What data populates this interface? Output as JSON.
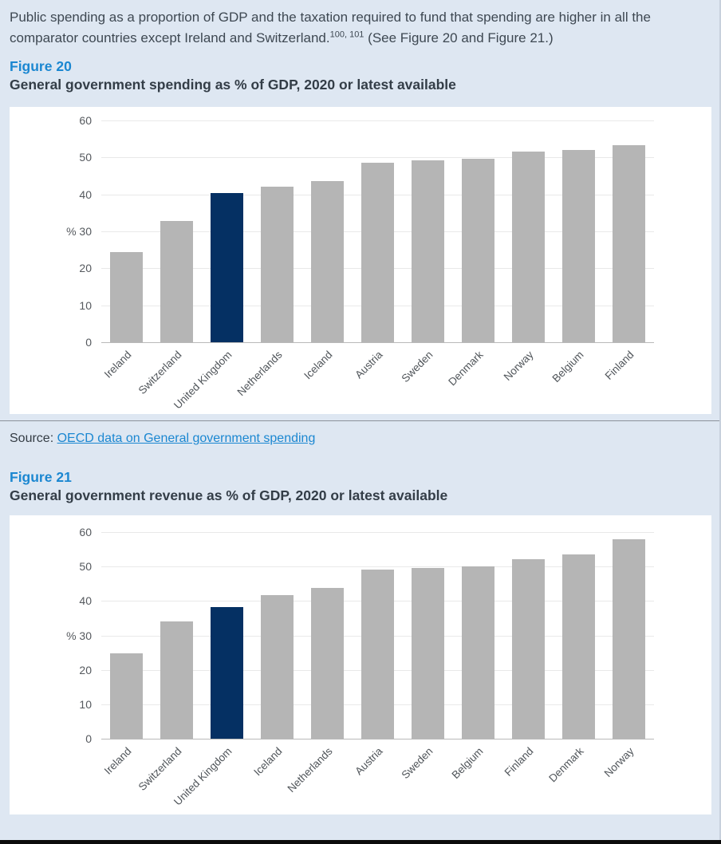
{
  "page": {
    "background": "#dee7f2",
    "intro": {
      "text_before_sup": "Public spending as a proportion of GDP and the taxation required to fund that spending are higher in all the comparator countries except Ireland and Switzerland.",
      "superscript": "100, 101",
      "text_after_sup": " (See Figure 20 and Figure 21.)"
    }
  },
  "figure20": {
    "label": "Figure 20",
    "title": "General government spending as % of GDP, 2020 or latest available"
  },
  "source_line": {
    "prefix": "Source: ",
    "link_text": "OECD data on General government spending"
  },
  "figure21": {
    "label": "Figure 21",
    "title": "General government revenue as % of GDP, 2020 or latest available"
  },
  "colors": {
    "accent_blue": "#1b87d1",
    "heading_text": "#333d47",
    "body_text": "#3e4852",
    "bar_gray": "#b5b5b5",
    "bar_highlight_navy": "#053063"
  },
  "chart_data": [
    {
      "id": "spending",
      "type": "bar",
      "title": "General government spending as % of GDP, 2020 or latest available",
      "categories": [
        "Ireland",
        "Switzerland",
        "United Kingdom",
        "Netherlands",
        "Iceland",
        "Austria",
        "Sweden",
        "Denmark",
        "Norway",
        "Belgium",
        "Finland"
      ],
      "values": [
        24.3,
        32.9,
        40.4,
        42.1,
        43.5,
        48.6,
        49.2,
        49.7,
        51.6,
        52.0,
        53.4
      ],
      "highlight_category": "United Kingdom",
      "bar_color": "#b5b5b5",
      "highlight_color": "#053063",
      "xlabel": "",
      "ylabel": "%",
      "unit_label": "%",
      "unit_tick": 30,
      "y_ticks": [
        0,
        10,
        20,
        30,
        40,
        50,
        60
      ],
      "ylim": [
        0,
        60
      ],
      "grid": true,
      "legend": "none",
      "xlabel_rotation": 45
    },
    {
      "id": "revenue",
      "type": "bar",
      "title": "General government revenue as % of GDP, 2020 or latest available",
      "categories": [
        "Ireland",
        "Switzerland",
        "United Kingdom",
        "Iceland",
        "Netherlands",
        "Austria",
        "Sweden",
        "Belgium",
        "Finland",
        "Denmark",
        "Norway"
      ],
      "values": [
        24.7,
        34.1,
        38.2,
        41.8,
        43.7,
        49.0,
        49.5,
        50.0,
        52.2,
        53.5,
        58.0
      ],
      "highlight_category": "United Kingdom",
      "bar_color": "#b5b5b5",
      "highlight_color": "#053063",
      "xlabel": "",
      "ylabel": "%",
      "unit_label": "%",
      "unit_tick": 30,
      "y_ticks": [
        0,
        10,
        20,
        30,
        40,
        50,
        60
      ],
      "ylim": [
        0,
        60
      ],
      "grid": true,
      "legend": "none",
      "xlabel_rotation": 45
    }
  ]
}
